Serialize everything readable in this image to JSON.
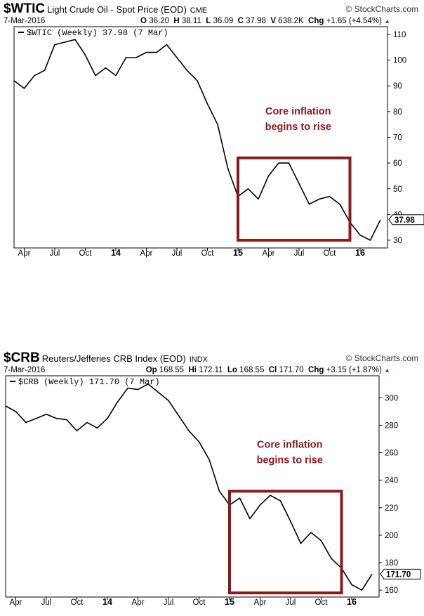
{
  "charts": [
    {
      "symbol": "$WTIC",
      "name": "Light Crude Oil - Spot Price (EOD)",
      "exchange": "CME",
      "brand": "© StockCharts.com",
      "date": "7-Mar-2016",
      "quote": {
        "o_label": "O",
        "o": "36.20",
        "h_label": "H",
        "h": "38.11",
        "l_label": "L",
        "l": "36.09",
        "c_label": "C",
        "c": "37.98",
        "v_label": "V",
        "v": "638.2K",
        "chg_label": "Chg",
        "chg": "+1.65 (+4.54%)"
      },
      "legend": "$WTIC (Weekly) 37.98 (7 Mar)",
      "last_value_label": "37.98",
      "annotation": [
        "Core inflation",
        "begins to rise"
      ],
      "accent_color": "#8b1a1a"
    },
    {
      "symbol": "$CRB",
      "name": "Reuters/Jefferies CRB Index (EOD)",
      "exchange": "INDX",
      "brand": "© StockCharts.com",
      "date": "7-Mar-2016",
      "quote": {
        "o_label": "Op",
        "o": "168.55",
        "h_label": "Hi",
        "h": "172.11",
        "l_label": "Lo",
        "l": "168.55",
        "c_label": "Cl",
        "c": "171.70",
        "chg_label": "Chg",
        "chg": "+3.15 (+1.87%)"
      },
      "legend": "$CRB (Weekly) 171.70 (7 Mar)",
      "last_value_label": "171.70",
      "annotation": [
        "Core inflation",
        "begins to rise"
      ],
      "accent_color": "#8b1a1a"
    }
  ],
  "chart_data": [
    {
      "type": "line",
      "series": [
        {
          "name": "$WTIC (Weekly)",
          "x": [
            "2013-03",
            "2013-04",
            "2013-05",
            "2013-06",
            "2013-07",
            "2013-08",
            "2013-09",
            "2013-10",
            "2013-11",
            "2013-12",
            "2014-01",
            "2014-02",
            "2014-03",
            "2014-04",
            "2014-05",
            "2014-06",
            "2014-07",
            "2014-08",
            "2014-09",
            "2014-10",
            "2014-11",
            "2014-12",
            "2015-01",
            "2015-02",
            "2015-03",
            "2015-04",
            "2015-05",
            "2015-06",
            "2015-07",
            "2015-08",
            "2015-09",
            "2015-10",
            "2015-11",
            "2015-12",
            "2016-01",
            "2016-02",
            "2016-03"
          ],
          "y": [
            92,
            89,
            94,
            96,
            106,
            107,
            108,
            102,
            94,
            97,
            94,
            101,
            101,
            103,
            103,
            106,
            101,
            96,
            92,
            83,
            75,
            58,
            47,
            50,
            46,
            55,
            60,
            60,
            52,
            44,
            46,
            47,
            44,
            37,
            32,
            30,
            37.98
          ]
        }
      ],
      "xticks": [
        "Apr",
        "Jul",
        "Oct",
        "14",
        "Apr",
        "Jul",
        "Oct",
        "15",
        "Apr",
        "Jul",
        "Oct",
        "16"
      ],
      "yticks": [
        30,
        40,
        50,
        60,
        70,
        80,
        90,
        100,
        110
      ],
      "ylim": [
        27,
        113
      ],
      "highlight": {
        "x_start": "2015-01",
        "x_end": "2015-12",
        "y_low": 30,
        "y_high": 62
      },
      "annotation": "Core inflation begins to rise"
    },
    {
      "type": "line",
      "series": [
        {
          "name": "$CRB (Weekly)",
          "x": [
            "2013-03",
            "2013-04",
            "2013-05",
            "2013-06",
            "2013-07",
            "2013-08",
            "2013-09",
            "2013-10",
            "2013-11",
            "2013-12",
            "2014-01",
            "2014-02",
            "2014-03",
            "2014-04",
            "2014-05",
            "2014-06",
            "2014-07",
            "2014-08",
            "2014-09",
            "2014-10",
            "2014-11",
            "2014-12",
            "2015-01",
            "2015-02",
            "2015-03",
            "2015-04",
            "2015-05",
            "2015-06",
            "2015-07",
            "2015-08",
            "2015-09",
            "2015-10",
            "2015-11",
            "2015-12",
            "2016-01",
            "2016-02",
            "2016-03"
          ],
          "y": [
            294,
            290,
            282,
            285,
            288,
            285,
            284,
            276,
            282,
            278,
            285,
            297,
            307,
            306,
            310,
            304,
            298,
            287,
            276,
            268,
            255,
            232,
            222,
            227,
            212,
            222,
            229,
            225,
            210,
            194,
            202,
            196,
            183,
            176,
            164,
            160,
            171.7
          ]
        }
      ],
      "xticks": [
        "Apr",
        "Jul",
        "Oct",
        "14",
        "Apr",
        "Jul",
        "Oct",
        "15",
        "Apr",
        "Jul",
        "Oct",
        "16"
      ],
      "yticks": [
        160,
        180,
        200,
        220,
        240,
        260,
        280,
        300
      ],
      "ylim": [
        155,
        316
      ],
      "highlight": {
        "x_start": "2015-01",
        "x_end": "2015-12",
        "y_low": 158,
        "y_high": 232
      },
      "annotation": "Core inflation begins to rise"
    }
  ]
}
